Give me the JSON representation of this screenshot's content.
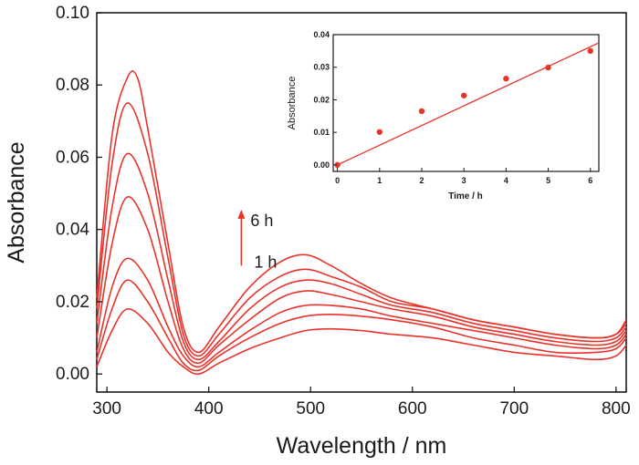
{
  "chart_data": [
    {
      "type": "line",
      "xlabel": "Wavelength / nm",
      "ylabel": "Absorbance",
      "xlim": [
        290,
        810
      ],
      "ylim": [
        -0.005,
        0.1
      ],
      "xticks": [
        300,
        400,
        500,
        600,
        700,
        800
      ],
      "yticks": [
        0.0,
        0.02,
        0.04,
        0.06,
        0.08,
        0.1
      ],
      "ytick_labels": [
        "0.00",
        "0.02",
        "0.04",
        "0.06",
        "0.08",
        "0.10"
      ],
      "grid": false,
      "color": "#e8332b",
      "series": [
        {
          "x": [
            290,
            305,
            320,
            340,
            360,
            375,
            390,
            410,
            440,
            470,
            495,
            520,
            550,
            580,
            620,
            660,
            700,
            740,
            780,
            800,
            810
          ],
          "y": [
            0.002,
            0.012,
            0.018,
            0.014,
            0.006,
            0.002,
            0.0,
            0.003,
            0.007,
            0.01,
            0.012,
            0.0125,
            0.012,
            0.011,
            0.01,
            0.008,
            0.006,
            0.005,
            0.004,
            0.005,
            0.008
          ]
        },
        {
          "x": [
            290,
            305,
            320,
            340,
            360,
            375,
            390,
            410,
            440,
            470,
            495,
            520,
            550,
            580,
            620,
            660,
            700,
            740,
            780,
            800,
            810
          ],
          "y": [
            0.004,
            0.018,
            0.026,
            0.02,
            0.01,
            0.003,
            0.001,
            0.005,
            0.01,
            0.014,
            0.016,
            0.0165,
            0.016,
            0.015,
            0.013,
            0.01,
            0.008,
            0.006,
            0.006,
            0.007,
            0.01
          ]
        },
        {
          "x": [
            290,
            305,
            320,
            340,
            360,
            375,
            390,
            410,
            440,
            470,
            495,
            520,
            550,
            580,
            620,
            660,
            700,
            740,
            780,
            800,
            810
          ],
          "y": [
            0.006,
            0.024,
            0.032,
            0.026,
            0.013,
            0.005,
            0.002,
            0.006,
            0.012,
            0.017,
            0.019,
            0.019,
            0.018,
            0.016,
            0.014,
            0.012,
            0.01,
            0.008,
            0.007,
            0.008,
            0.011
          ]
        },
        {
          "x": [
            290,
            305,
            320,
            340,
            360,
            375,
            390,
            410,
            440,
            470,
            495,
            520,
            550,
            580,
            620,
            660,
            700,
            740,
            780,
            800,
            810
          ],
          "y": [
            0.01,
            0.036,
            0.049,
            0.04,
            0.02,
            0.007,
            0.003,
            0.008,
            0.015,
            0.021,
            0.023,
            0.022,
            0.02,
            0.018,
            0.016,
            0.013,
            0.011,
            0.009,
            0.008,
            0.009,
            0.012
          ]
        },
        {
          "x": [
            290,
            305,
            320,
            340,
            360,
            375,
            390,
            410,
            440,
            470,
            495,
            520,
            550,
            580,
            620,
            660,
            700,
            740,
            780,
            800,
            810
          ],
          "y": [
            0.014,
            0.046,
            0.061,
            0.05,
            0.026,
            0.009,
            0.004,
            0.009,
            0.018,
            0.024,
            0.026,
            0.025,
            0.022,
            0.019,
            0.017,
            0.014,
            0.012,
            0.01,
            0.009,
            0.01,
            0.013
          ]
        },
        {
          "x": [
            290,
            305,
            320,
            340,
            360,
            375,
            390,
            410,
            440,
            470,
            495,
            520,
            550,
            580,
            620,
            660,
            700,
            740,
            780,
            800,
            810
          ],
          "y": [
            0.018,
            0.058,
            0.075,
            0.061,
            0.032,
            0.011,
            0.005,
            0.011,
            0.021,
            0.027,
            0.029,
            0.027,
            0.024,
            0.02,
            0.018,
            0.015,
            0.013,
            0.011,
            0.01,
            0.011,
            0.014
          ]
        },
        {
          "x": [
            290,
            305,
            320,
            330,
            340,
            360,
            375,
            390,
            410,
            440,
            470,
            495,
            520,
            550,
            580,
            620,
            660,
            700,
            740,
            780,
            800,
            810
          ],
          "y": [
            0.021,
            0.066,
            0.082,
            0.082,
            0.068,
            0.036,
            0.013,
            0.006,
            0.013,
            0.024,
            0.031,
            0.033,
            0.03,
            0.025,
            0.021,
            0.018,
            0.015,
            0.013,
            0.011,
            0.01,
            0.011,
            0.015
          ]
        }
      ],
      "annotation": {
        "top_label": "6 h",
        "bottom_label": "1 h",
        "x": 432,
        "y_top": 0.045,
        "y_bottom": 0.03
      }
    },
    {
      "type": "scatter",
      "xlabel": "Time / h",
      "ylabel": "Absorbance",
      "xlim": [
        -0.1,
        6.2
      ],
      "ylim": [
        -0.002,
        0.04
      ],
      "xticks": [
        0,
        1,
        2,
        3,
        4,
        5,
        6
      ],
      "yticks": [
        0.0,
        0.01,
        0.02,
        0.03,
        0.04
      ],
      "ytick_labels": [
        "0.00",
        "0.01",
        "0.02",
        "0.03",
        "0.04"
      ],
      "grid": false,
      "color": "#e8332b",
      "points": {
        "x": [
          0,
          1,
          2,
          3,
          4,
          5,
          6
        ],
        "y": [
          0.0,
          0.0101,
          0.0165,
          0.0213,
          0.0265,
          0.0299,
          0.035
        ]
      },
      "fit_line": {
        "x": [
          0,
          6.2
        ],
        "y": [
          0.0,
          0.0375
        ]
      }
    }
  ]
}
